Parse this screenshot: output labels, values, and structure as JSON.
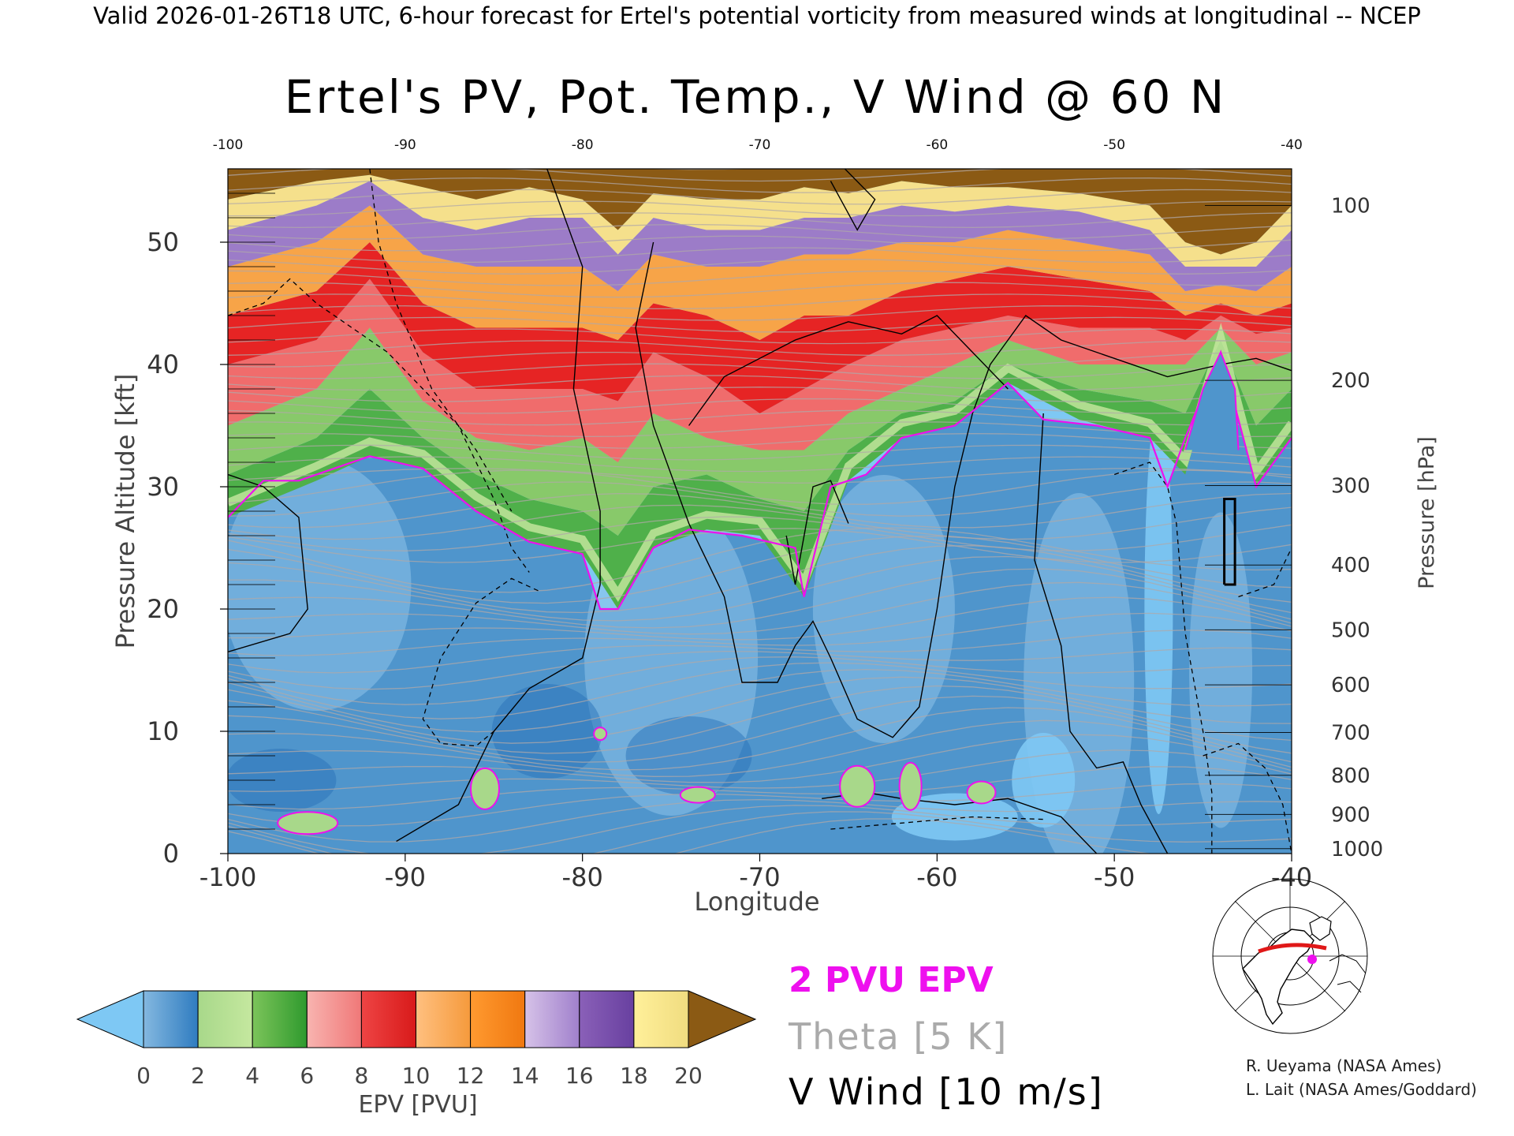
{
  "header": {
    "valid_line": "Valid 2026-01-26T18 UTC, 6-hour forecast for Ertel's potential vorticity from measured winds at longitudinal -- NCEP"
  },
  "chart_data": {
    "type": "heatmap",
    "title": "Ertel's PV, Pot. Temp., V Wind @ 60 N",
    "xlabel": "Longitude",
    "ylabel": "Pressure Altitude [kft]",
    "y2label": "Pressure [hPa]",
    "xlim": [
      -100,
      -40
    ],
    "ylim": [
      0,
      56
    ],
    "x_ticks": [
      "-100",
      "-90",
      "-80",
      "-70",
      "-60",
      "-50",
      "-40"
    ],
    "top_ticks": [
      "-100",
      "-90",
      "-80",
      "-70",
      "-60",
      "-50",
      "-40"
    ],
    "y_ticks": [
      "0",
      "10",
      "20",
      "30",
      "40",
      "50"
    ],
    "pressure_ticks": [
      {
        "label": "100",
        "kft": 53.0
      },
      {
        "label": "200",
        "kft": 38.7
      },
      {
        "label": "300",
        "kft": 30.1
      },
      {
        "label": "400",
        "kft": 23.6
      },
      {
        "label": "500",
        "kft": 18.3
      },
      {
        "label": "600",
        "kft": 13.8
      },
      {
        "label": "700",
        "kft": 9.9
      },
      {
        "label": "800",
        "kft": 6.4
      },
      {
        "label": "900",
        "kft": 3.2
      },
      {
        "label": "1000",
        "kft": 0.4
      }
    ],
    "colorbar": {
      "label": "EPV [PVU]",
      "tick_labels": [
        "0",
        "2",
        "4",
        "6",
        "8",
        "10",
        "12",
        "14",
        "16",
        "18",
        "20"
      ],
      "under_color": "#7ec8f4",
      "over_color": "#8b5a14",
      "segments": [
        [
          "#84b8e0",
          "#2f7cc0"
        ],
        [
          "#a8d88a",
          "#c5e89f"
        ],
        [
          "#7cc45a",
          "#2f9a2e"
        ],
        [
          "#f8b4b0",
          "#f07878"
        ],
        [
          "#ee4444",
          "#d81a1a"
        ],
        [
          "#ffc080",
          "#f59a3c"
        ],
        [
          "#ff9a30",
          "#f07810"
        ],
        [
          "#d6c2e8",
          "#a080cc"
        ],
        [
          "#8a60b8",
          "#6840a0"
        ],
        [
          "#fff09a",
          "#f0dc80"
        ]
      ]
    },
    "tropopause_kft": [
      {
        "x": -100,
        "y": 27.5
      },
      {
        "x": -98,
        "y": 30.5
      },
      {
        "x": -96,
        "y": 30.5
      },
      {
        "x": -92,
        "y": 32.5
      },
      {
        "x": -89,
        "y": 31.5
      },
      {
        "x": -86,
        "y": 28.0
      },
      {
        "x": -83,
        "y": 25.5
      },
      {
        "x": -80,
        "y": 24.5
      },
      {
        "x": -79,
        "y": 20.0
      },
      {
        "x": -78,
        "y": 20.0
      },
      {
        "x": -76,
        "y": 25.0
      },
      {
        "x": -74,
        "y": 26.5
      },
      {
        "x": -71,
        "y": 26.0
      },
      {
        "x": -68,
        "y": 25.0
      },
      {
        "x": -67.5,
        "y": 21.0
      },
      {
        "x": -66,
        "y": 30.0
      },
      {
        "x": -64,
        "y": 31.0
      },
      {
        "x": -62,
        "y": 34.0
      },
      {
        "x": -59,
        "y": 35.0
      },
      {
        "x": -56,
        "y": 38.5
      },
      {
        "x": -54,
        "y": 35.5
      },
      {
        "x": -51,
        "y": 35.0
      },
      {
        "x": -48,
        "y": 34.0
      },
      {
        "x": -47,
        "y": 30.0
      },
      {
        "x": -46,
        "y": 34.0
      },
      {
        "x": -44,
        "y": 41.0
      },
      {
        "x": -42,
        "y": 30.0
      },
      {
        "x": -40,
        "y": 34.0
      }
    ],
    "pv_bands_kft": [
      {
        "x": -100,
        "b": [
          27.5,
          31,
          35,
          40,
          44,
          48,
          51,
          53.5
        ]
      },
      {
        "x": -95,
        "b": [
          30.5,
          34,
          38,
          42,
          46,
          50,
          53,
          55
        ]
      },
      {
        "x": -92,
        "b": [
          32.5,
          38,
          43,
          47,
          50,
          53,
          55,
          55.5
        ]
      },
      {
        "x": -89,
        "b": [
          31.5,
          34,
          37,
          41,
          45,
          49,
          52,
          54.5
        ]
      },
      {
        "x": -86,
        "b": [
          28,
          31,
          34,
          38,
          43,
          48,
          51,
          53.5
        ]
      },
      {
        "x": -83,
        "b": [
          25.5,
          29,
          33,
          38,
          43,
          48,
          52,
          54.5
        ]
      },
      {
        "x": -80,
        "b": [
          24.5,
          28,
          34,
          38,
          43,
          48,
          52,
          53.5
        ]
      },
      {
        "x": -78,
        "b": [
          20,
          26,
          32,
          37,
          42,
          46,
          49,
          51
        ]
      },
      {
        "x": -76,
        "b": [
          25,
          30,
          36,
          41,
          45,
          49,
          52,
          54
        ]
      },
      {
        "x": -73,
        "b": [
          26.5,
          31,
          34,
          39,
          44,
          48,
          51,
          53.5
        ]
      },
      {
        "x": -70,
        "b": [
          26,
          29,
          33,
          36,
          42,
          48,
          51,
          53.5
        ]
      },
      {
        "x": -67.5,
        "b": [
          21,
          28,
          33,
          38,
          44,
          49,
          52,
          54.5
        ]
      },
      {
        "x": -65,
        "b": [
          30.5,
          33,
          36,
          40,
          44,
          49,
          52,
          54
        ]
      },
      {
        "x": -62,
        "b": [
          34,
          36,
          38,
          42,
          46,
          50,
          53,
          55
        ]
      },
      {
        "x": -59,
        "b": [
          35,
          37,
          40,
          43,
          47,
          50,
          52.5,
          54.5
        ]
      },
      {
        "x": -56,
        "b": [
          38.5,
          40,
          42,
          44,
          48,
          51,
          53,
          54.5
        ]
      },
      {
        "x": -52,
        "b": [
          35.5,
          38,
          40,
          43,
          47,
          50,
          52.5,
          54
        ]
      },
      {
        "x": -48,
        "b": [
          34,
          37,
          40,
          43,
          46,
          49,
          51,
          53
        ]
      },
      {
        "x": -46,
        "b": [
          31,
          36,
          40,
          42,
          44,
          46,
          48,
          50
        ]
      },
      {
        "x": -44,
        "b": [
          41,
          42,
          43,
          44,
          45,
          46.5,
          48,
          49
        ]
      },
      {
        "x": -42,
        "b": [
          30,
          35,
          40,
          42.5,
          44,
          46,
          48,
          50
        ]
      },
      {
        "x": -40,
        "b": [
          34,
          38,
          41,
          43,
          45,
          48,
          51,
          53
        ]
      }
    ],
    "wind_zero_contours": [
      [
        [
          -100,
          31
        ],
        [
          -98,
          30
        ],
        [
          -96,
          27.5
        ],
        [
          -95.5,
          20
        ],
        [
          -96.5,
          18
        ],
        [
          -100,
          16.5
        ]
      ],
      [
        [
          -90.5,
          1
        ],
        [
          -87,
          4
        ],
        [
          -85,
          10
        ],
        [
          -83,
          13.5
        ],
        [
          -80,
          16
        ],
        [
          -79,
          22
        ],
        [
          -79,
          28
        ],
        [
          -80.5,
          38
        ],
        [
          -80,
          48
        ],
        [
          -82,
          56
        ]
      ],
      [
        [
          -76,
          50
        ],
        [
          -77,
          43
        ],
        [
          -76,
          35
        ],
        [
          -74,
          27
        ],
        [
          -72,
          21
        ],
        [
          -71,
          14
        ],
        [
          -69,
          14
        ],
        [
          -68,
          17
        ],
        [
          -67,
          19
        ],
        [
          -66,
          16
        ],
        [
          -64.5,
          11
        ],
        [
          -62.5,
          9.5
        ],
        [
          -61,
          12
        ],
        [
          -60,
          20
        ],
        [
          -59,
          30
        ],
        [
          -58,
          36
        ],
        [
          -57,
          40
        ],
        [
          -55,
          44
        ],
        [
          -53,
          42
        ],
        [
          -50,
          40.5
        ],
        [
          -47,
          39
        ],
        [
          -44,
          40
        ],
        [
          -42,
          40.5
        ],
        [
          -40,
          39.5
        ]
      ],
      [
        [
          -74,
          35
        ],
        [
          -72,
          39
        ],
        [
          -68,
          42
        ],
        [
          -65,
          43.5
        ],
        [
          -62,
          42.5
        ],
        [
          -60,
          44
        ],
        [
          -58,
          41
        ],
        [
          -56,
          38
        ]
      ],
      [
        [
          -68.5,
          26
        ],
        [
          -68,
          22
        ],
        [
          -67,
          30
        ],
        [
          -66,
          30.5
        ],
        [
          -65,
          27
        ]
      ],
      [
        [
          -54,
          36
        ],
        [
          -54.5,
          24
        ],
        [
          -53,
          17
        ],
        [
          -52.5,
          10
        ],
        [
          -51,
          7
        ],
        [
          -49.5,
          7.5
        ],
        [
          -48.5,
          4
        ],
        [
          -47,
          0
        ]
      ],
      [
        [
          -66.5,
          4.5
        ],
        [
          -64,
          5
        ],
        [
          -62,
          4.5
        ],
        [
          -59,
          4
        ],
        [
          -56,
          4.5
        ],
        [
          -53,
          3
        ],
        [
          -51,
          0
        ]
      ],
      [
        [
          -66,
          55
        ],
        [
          -64.5,
          51
        ],
        [
          -63.5,
          53.5
        ],
        [
          -65.2,
          56
        ]
      ]
    ],
    "wind_dashed_contours": [
      [
        [
          -100,
          44
        ],
        [
          -98,
          45
        ],
        [
          -96.5,
          47
        ],
        [
          -95,
          45
        ],
        [
          -93,
          43
        ],
        [
          -91,
          41
        ],
        [
          -89,
          38
        ],
        [
          -87,
          35
        ],
        [
          -85,
          29
        ],
        [
          -84,
          25
        ],
        [
          -83,
          23
        ]
      ],
      [
        [
          -92,
          56
        ],
        [
          -91.5,
          50
        ],
        [
          -90.5,
          45
        ],
        [
          -88.5,
          38
        ],
        [
          -86,
          33
        ],
        [
          -84,
          28
        ]
      ],
      [
        [
          -82.5,
          21.5
        ],
        [
          -84,
          22.5
        ],
        [
          -86,
          20.5
        ],
        [
          -88,
          16
        ],
        [
          -89,
          11
        ],
        [
          -88,
          9
        ],
        [
          -86,
          8.8
        ],
        [
          -85,
          10
        ]
      ],
      [
        [
          -50,
          31
        ],
        [
          -48,
          32
        ],
        [
          -47,
          30
        ],
        [
          -46.5,
          27
        ],
        [
          -46,
          18
        ],
        [
          -45,
          10
        ],
        [
          -44.5,
          5
        ],
        [
          -44.5,
          0
        ]
      ],
      [
        [
          -45,
          8
        ],
        [
          -43,
          9
        ],
        [
          -41.5,
          7
        ],
        [
          -40.5,
          4
        ],
        [
          -40,
          0
        ]
      ],
      [
        [
          -66,
          2
        ],
        [
          -62,
          2.5
        ],
        [
          -58,
          3
        ],
        [
          -54,
          2.8
        ]
      ],
      [
        [
          -43,
          21
        ],
        [
          -41,
          22
        ],
        [
          -40,
          25
        ]
      ]
    ],
    "theta_contours_K": [
      "250",
      "260",
      "270",
      "300",
      "310",
      "340",
      "370",
      "380",
      "400",
      "410",
      "420"
    ],
    "legend": {
      "pv_label": "2 PVU EPV",
      "pv_color": "#ee10ee",
      "theta_label": "Theta [5 K]",
      "theta_color": "#aaaaaa",
      "wind_label": "V Wind [10 m/s]",
      "wind_color": "#000000"
    },
    "credits": [
      "R. Ueyama (NASA Ames)",
      "L. Lait (NASA Ames/Goddard)"
    ]
  }
}
